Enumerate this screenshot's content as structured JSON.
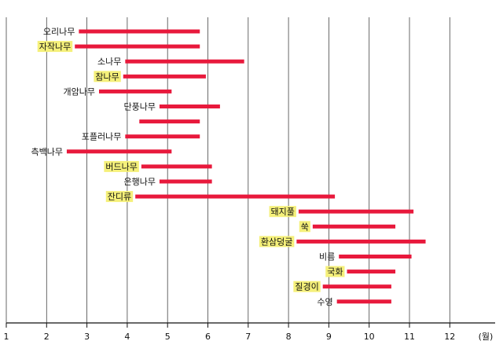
{
  "chart_data": {
    "type": "bar",
    "orientation": "horizontal-range",
    "title": "",
    "xlabel": "(월)",
    "ylabel": "",
    "xlim": [
      1,
      13
    ],
    "xticks": [
      "1",
      "2",
      "3",
      "4",
      "5",
      "6",
      "7",
      "8",
      "9",
      "10",
      "11",
      "12"
    ],
    "grid": true,
    "bar_color": "#e8193c",
    "highlight_color": "#f5f07a",
    "items": [
      {
        "label": "오리나무",
        "start": 2.8,
        "end": 5.8,
        "highlight": false
      },
      {
        "label": "자작나무",
        "start": 2.7,
        "end": 5.8,
        "highlight": true
      },
      {
        "label": "소나무",
        "start": 3.95,
        "end": 6.9,
        "highlight": false
      },
      {
        "label": "참나무",
        "start": 3.9,
        "end": 5.95,
        "highlight": true
      },
      {
        "label": "개암나무",
        "start": 3.3,
        "end": 5.1,
        "highlight": false
      },
      {
        "label": "단풍나무",
        "start": 4.8,
        "end": 6.3,
        "highlight": false
      },
      {
        "label": "",
        "start": 4.3,
        "end": 5.8,
        "highlight": false
      },
      {
        "label": "포플러나무",
        "start": 3.95,
        "end": 5.8,
        "highlight": false
      },
      {
        "label": "측백나무",
        "start": 2.5,
        "end": 5.1,
        "highlight": false
      },
      {
        "label": "버드나무",
        "start": 4.35,
        "end": 6.1,
        "highlight": true
      },
      {
        "label": "은행나무",
        "start": 4.8,
        "end": 6.1,
        "highlight": false
      },
      {
        "label": "잔디류",
        "start": 4.2,
        "end": 9.15,
        "highlight": true
      },
      {
        "label": "돼지풀",
        "start": 8.25,
        "end": 11.1,
        "highlight": true
      },
      {
        "label": "쑥",
        "start": 8.6,
        "end": 10.65,
        "highlight": true
      },
      {
        "label": "환삼덩굴",
        "start": 8.2,
        "end": 11.4,
        "highlight": true
      },
      {
        "label": "비름",
        "start": 9.25,
        "end": 11.05,
        "highlight": false
      },
      {
        "label": "국화",
        "start": 9.45,
        "end": 10.65,
        "highlight": true
      },
      {
        "label": "질경이",
        "start": 8.85,
        "end": 10.55,
        "highlight": true
      },
      {
        "label": "수영",
        "start": 9.2,
        "end": 10.55,
        "highlight": false
      }
    ]
  }
}
